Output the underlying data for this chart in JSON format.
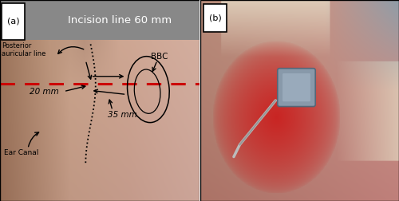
{
  "fig_width": 5.0,
  "fig_height": 2.52,
  "dpi": 100,
  "panel_a": {
    "label": "(a)",
    "title": "Incision line 60 mm",
    "title_bg": "#888888",
    "title_color": "white",
    "title_fontsize": 10,
    "posterior_line_label": "Posterior\nauricular line",
    "posterior_line_color": "#cc0000",
    "bbc_label": "BBC",
    "dim_20mm": "20 mm",
    "dim_35mm": "35 mm",
    "ear_canal_label": "Ear Canal"
  },
  "panel_b": {
    "label": "(b)"
  }
}
